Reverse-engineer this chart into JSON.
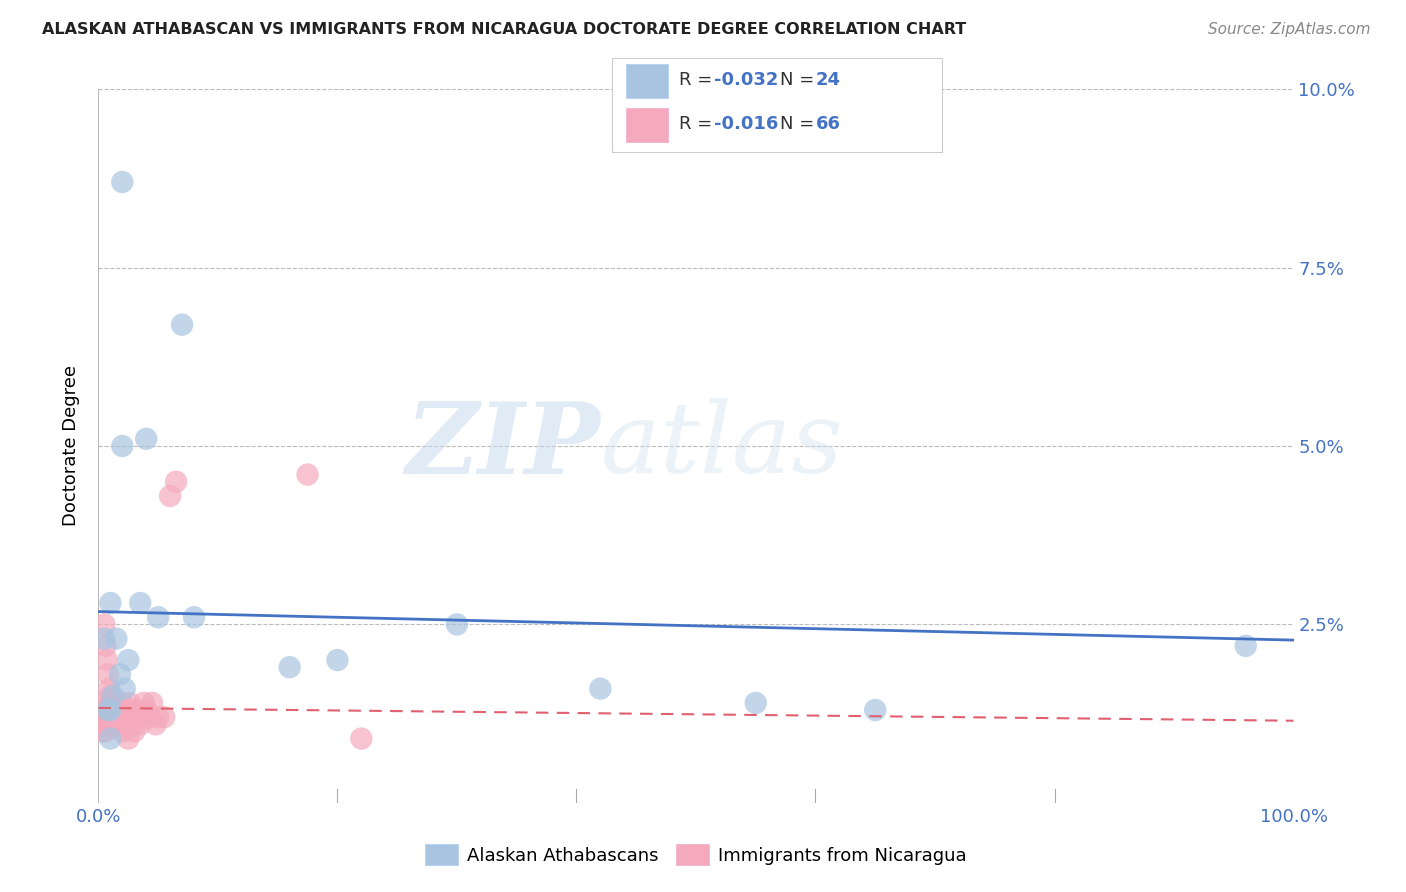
{
  "title": "ALASKAN ATHABASCAN VS IMMIGRANTS FROM NICARAGUA DOCTORATE DEGREE CORRELATION CHART",
  "source": "Source: ZipAtlas.com",
  "ylabel": "Doctorate Degree",
  "xlim": [
    0,
    1.0
  ],
  "ylim": [
    0,
    0.1
  ],
  "yticks": [
    0.0,
    0.025,
    0.05,
    0.075,
    0.1
  ],
  "ytick_labels": [
    "",
    "2.5%",
    "5.0%",
    "7.5%",
    "10.0%"
  ],
  "xtick_labels": [
    "0.0%",
    "100.0%"
  ],
  "blue_R": "-0.032",
  "blue_N": "24",
  "pink_R": "-0.016",
  "pink_N": "66",
  "blue_color": "#A8C4E0",
  "pink_color": "#F4AABC",
  "blue_line_color": "#4472C4",
  "pink_line_color": "#E06070",
  "watermark_zip": "ZIP",
  "watermark_atlas": "atlas",
  "legend_label_blue": "Alaskan Athabascans",
  "legend_label_pink": "Immigrants from Nicaragua",
  "blue_scatter_x": [
    0.02,
    0.07,
    0.04,
    0.02,
    0.08,
    0.01,
    0.015,
    0.025,
    0.035,
    0.05,
    0.005,
    0.012,
    0.008,
    0.018,
    0.022,
    0.01,
    0.16,
    0.2,
    0.55,
    0.96,
    0.42,
    0.3,
    0.01,
    0.65
  ],
  "blue_scatter_y": [
    0.087,
    0.067,
    0.051,
    0.05,
    0.026,
    0.028,
    0.023,
    0.02,
    0.028,
    0.026,
    0.023,
    0.015,
    0.013,
    0.018,
    0.016,
    0.013,
    0.019,
    0.02,
    0.014,
    0.022,
    0.016,
    0.025,
    0.009,
    0.013
  ],
  "pink_scatter_x": [
    0.003,
    0.004,
    0.005,
    0.005,
    0.006,
    0.006,
    0.007,
    0.007,
    0.008,
    0.008,
    0.009,
    0.009,
    0.01,
    0.01,
    0.011,
    0.011,
    0.012,
    0.012,
    0.013,
    0.013,
    0.014,
    0.014,
    0.015,
    0.015,
    0.016,
    0.016,
    0.017,
    0.018,
    0.018,
    0.019,
    0.02,
    0.021,
    0.022,
    0.023,
    0.025,
    0.026,
    0.027,
    0.028,
    0.03,
    0.032,
    0.035,
    0.038,
    0.04,
    0.042,
    0.045,
    0.048,
    0.05,
    0.055,
    0.06,
    0.065,
    0.003,
    0.004,
    0.005,
    0.006,
    0.007,
    0.008,
    0.009,
    0.01,
    0.012,
    0.014,
    0.017,
    0.02,
    0.025,
    0.03,
    0.175,
    0.22
  ],
  "pink_scatter_y": [
    0.012,
    0.013,
    0.025,
    0.014,
    0.022,
    0.012,
    0.02,
    0.011,
    0.018,
    0.013,
    0.016,
    0.012,
    0.015,
    0.013,
    0.014,
    0.012,
    0.013,
    0.012,
    0.014,
    0.011,
    0.013,
    0.012,
    0.014,
    0.013,
    0.012,
    0.011,
    0.013,
    0.012,
    0.013,
    0.014,
    0.012,
    0.013,
    0.012,
    0.011,
    0.013,
    0.014,
    0.012,
    0.011,
    0.013,
    0.012,
    0.011,
    0.014,
    0.013,
    0.012,
    0.014,
    0.011,
    0.012,
    0.012,
    0.043,
    0.045,
    0.01,
    0.012,
    0.011,
    0.01,
    0.013,
    0.012,
    0.011,
    0.013,
    0.012,
    0.011,
    0.013,
    0.01,
    0.009,
    0.01,
    0.046,
    0.009
  ],
  "blue_trend_x": [
    0.0,
    1.0
  ],
  "blue_trend_y_start": 0.0268,
  "blue_trend_y_end": 0.0228,
  "pink_trend_y_start": 0.0133,
  "pink_trend_y_end": 0.0115
}
